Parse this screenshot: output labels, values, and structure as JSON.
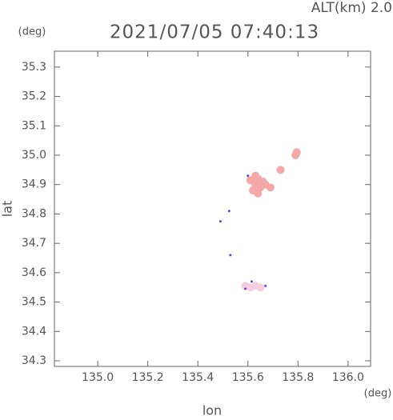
{
  "chart_data": {
    "type": "scatter",
    "title": "2021/07/05 07:40:13",
    "subtitle": "ALT(km) 2.0",
    "y_unit": "(deg)",
    "x_unit": "(deg)",
    "x_label": "lon",
    "y_label": "lat",
    "xlim": [
      134.827,
      136.09
    ],
    "ylim": [
      34.281,
      35.354
    ],
    "xticks": [
      {
        "value": 135.0,
        "label": "135.0"
      },
      135.2,
      135.4,
      135.6,
      135.8,
      {
        "value": 136.0,
        "label": "136.0"
      }
    ],
    "yticks": [
      34.3,
      34.4,
      34.5,
      34.6,
      34.7,
      34.8,
      34.9,
      {
        "value": 35.0,
        "label": "35.0"
      },
      35.1,
      35.2,
      35.3
    ],
    "series": [
      {
        "color": "#f4a7a7",
        "x": [
          135.63,
          135.65,
          135.64,
          135.62,
          135.66,
          135.64,
          135.67,
          135.69,
          135.73,
          135.79,
          135.795,
          135.63,
          135.61
        ],
        "values": [
          34.9,
          34.89,
          34.87,
          34.88,
          34.91,
          34.92,
          34.9,
          34.89,
          34.95,
          35.0,
          35.01,
          34.93,
          34.915
        ]
      },
      {
        "color": "#f5cde0",
        "x": [
          135.61,
          135.63,
          135.65,
          135.59
        ],
        "values": [
          34.55,
          34.555,
          34.55,
          34.555
        ]
      },
      {
        "color": "#5a48d6",
        "x": [
          135.59,
          135.525,
          135.49,
          135.53,
          135.615,
          135.67,
          135.6
        ],
        "values": [
          34.545,
          34.81,
          34.775,
          34.66,
          34.57,
          34.555,
          34.93
        ]
      }
    ]
  }
}
